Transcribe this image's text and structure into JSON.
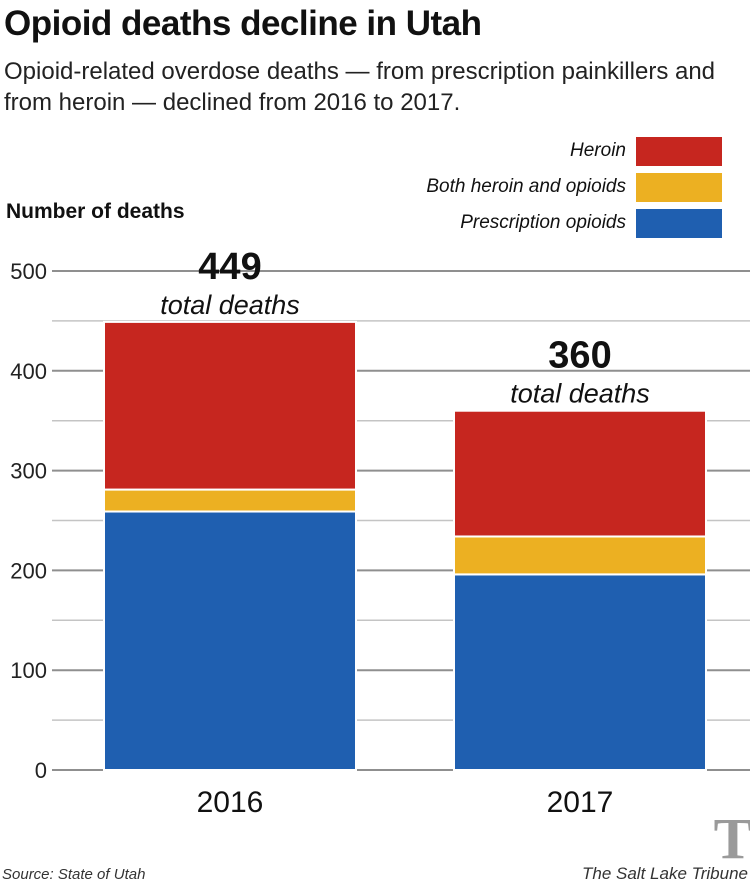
{
  "header": {
    "title": "Opioid deaths decline in Utah",
    "subtitle": "Opioid-related overdose deaths — from prescription painkillers and from heroin — declined from 2016 to 2017."
  },
  "footer": {
    "source": "Source: State of Utah",
    "brand": "The Salt Lake Tribune",
    "logo_letter": "T"
  },
  "chart_data": {
    "type": "bar",
    "stacked": true,
    "title": "Opioid deaths decline in Utah",
    "ylabel": "Number of deaths",
    "xlabel": "",
    "categories": [
      "2016",
      "2017"
    ],
    "ylim": [
      0,
      500
    ],
    "yticks": [
      0,
      100,
      200,
      300,
      400,
      500
    ],
    "grid": true,
    "legend_position": "top-right",
    "series": [
      {
        "name": "Prescription opioids",
        "color": "#1f5fb0",
        "values": [
          259,
          196
        ]
      },
      {
        "name": "Both heroin and opioids",
        "color": "#ecb022",
        "values": [
          22,
          38
        ]
      },
      {
        "name": "Heroin",
        "color": "#c6261f",
        "values": [
          168,
          126
        ]
      }
    ],
    "legend_order": [
      "Heroin",
      "Both heroin and opioids",
      "Prescription opioids"
    ],
    "totals": [
      449,
      360
    ],
    "total_labels": [
      "449",
      "360"
    ],
    "total_sublabel": "total deaths"
  }
}
